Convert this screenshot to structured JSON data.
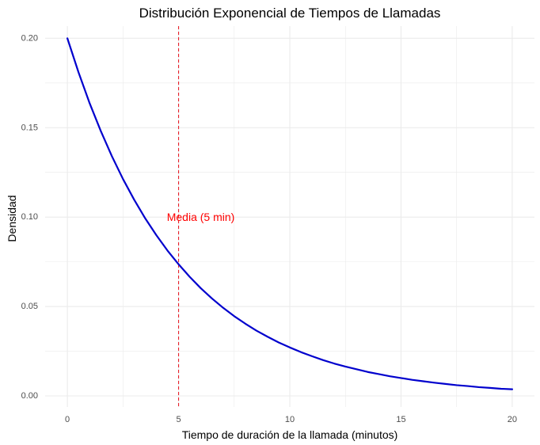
{
  "chart_data": {
    "type": "line",
    "title": "Distribución Exponencial de Tiempos de Llamadas",
    "xlabel": "Tiempo de duración de la llamada (minutos)",
    "ylabel": "Densidad",
    "xlim": [
      -1,
      21
    ],
    "ylim": [
      -0.0062,
      0.2068
    ],
    "x_ticks": [
      0,
      5,
      10,
      15,
      20
    ],
    "x_tick_labels": [
      "0",
      "5",
      "10",
      "15",
      "20"
    ],
    "y_ticks": [
      0.0,
      0.05,
      0.1,
      0.15,
      0.2
    ],
    "y_tick_labels": [
      "0.00",
      "0.05",
      "0.10",
      "0.15",
      "0.20"
    ],
    "x_minor_gridlines": [
      2.5,
      7.5,
      12.5,
      17.5
    ],
    "y_minor_gridlines": [
      0.025,
      0.075,
      0.125,
      0.175
    ],
    "grid": true,
    "series": [
      {
        "color": "#0000cd",
        "x": [
          0,
          0.5,
          1,
          1.5,
          2,
          2.5,
          3,
          3.5,
          4,
          4.5,
          5,
          5.5,
          6,
          6.5,
          7,
          7.5,
          8,
          8.5,
          9,
          9.5,
          10,
          10.5,
          11,
          11.5,
          12,
          12.5,
          13,
          13.5,
          14,
          14.5,
          15,
          15.5,
          16,
          16.5,
          17,
          17.5,
          18,
          18.5,
          19,
          19.5,
          20
        ],
        "y": [
          0.2,
          0.181,
          0.1637,
          0.1482,
          0.1341,
          0.1213,
          0.1098,
          0.0993,
          0.0899,
          0.0813,
          0.0736,
          0.0666,
          0.0602,
          0.0545,
          0.0493,
          0.0446,
          0.0404,
          0.0365,
          0.0331,
          0.0299,
          0.0271,
          0.0245,
          0.0222,
          0.02,
          0.0181,
          0.0164,
          0.0149,
          0.0134,
          0.0122,
          0.011,
          0.01,
          0.009,
          0.0082,
          0.0074,
          0.0067,
          0.006,
          0.0055,
          0.0049,
          0.0045,
          0.004,
          0.0037
        ]
      }
    ],
    "vline": {
      "x": 5,
      "color": "#e8202a",
      "linestyle": "dashed"
    },
    "annotation": {
      "text": "Media (5 min)",
      "x": 5,
      "y": 0.1,
      "color": "#ff0000"
    },
    "colors": {
      "background": "#ffffff",
      "grid": "#ebebeb",
      "tick_text": "#4d4d4d",
      "text": "#000000"
    }
  }
}
